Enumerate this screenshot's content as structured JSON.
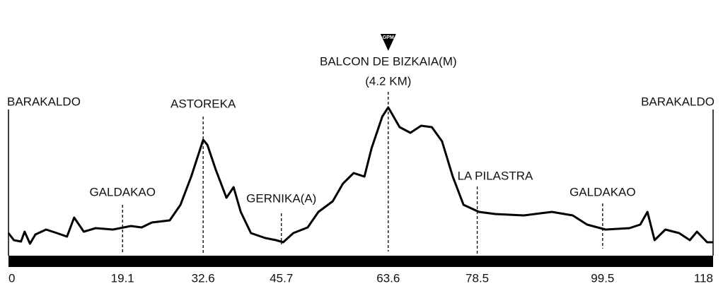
{
  "chart_data": {
    "type": "line",
    "x": [
      0,
      0.9,
      2.1,
      2.7,
      3.6,
      4.5,
      6.3,
      8.1,
      9.8,
      11,
      12.6,
      14.6,
      17.5,
      20.5,
      22.3,
      24,
      27,
      28.8,
      30.6,
      32.6,
      33.3,
      34.7,
      36.5,
      37.7,
      38.9,
      40.6,
      43,
      44.8,
      46,
      47.7,
      50.1,
      51.9,
      54.3,
      56,
      57.8,
      59.6,
      60.8,
      62.6,
      63.6,
      65.5,
      67.3,
      69.1,
      70.9,
      72.6,
      74.4,
      76.2,
      78.8,
      81.5,
      86.3,
      91,
      94.5,
      96.9,
      100,
      104,
      105.8,
      107,
      108.2,
      110,
      112.3,
      114.1,
      115.3,
      117,
      118
    ],
    "values": [
      32,
      22,
      20,
      34,
      17,
      30,
      37,
      32,
      27,
      54,
      34,
      39,
      37,
      42,
      40,
      47,
      50,
      72,
      112,
      164,
      157,
      122,
      82,
      97,
      62,
      32,
      25,
      22,
      19,
      32,
      40,
      62,
      77,
      102,
      117,
      112,
      152,
      197,
      210,
      182,
      174,
      184,
      182,
      162,
      112,
      72,
      62,
      59,
      57,
      62,
      57,
      44,
      37,
      39,
      44,
      62,
      22,
      37,
      32,
      22,
      34,
      19,
      19
    ],
    "color": "#000000",
    "xlim": [
      0,
      118
    ],
    "ylim": [
      0,
      250
    ],
    "xticks": [
      0,
      19.1,
      32.6,
      45.7,
      63.6,
      78.5,
      99.5,
      118
    ],
    "markers": [
      {
        "label": "BARAKALDO",
        "x": 0
      },
      {
        "label": "GALDAKAO",
        "x": 19.1
      },
      {
        "label": "ASTOREKA",
        "x": 32.6
      },
      {
        "label": "GERNIKA(A)",
        "x": 45.7
      },
      {
        "label": "BALCON DE BIZKAIA(M)",
        "sublabel": "(4.2 KM)",
        "badge": "GPM",
        "x": 63.6
      },
      {
        "label": "LA PILASTRA",
        "x": 78.5
      },
      {
        "label": "GALDAKAO",
        "x": 99.5
      },
      {
        "label": "BARAKALDO",
        "x": 118
      }
    ]
  }
}
